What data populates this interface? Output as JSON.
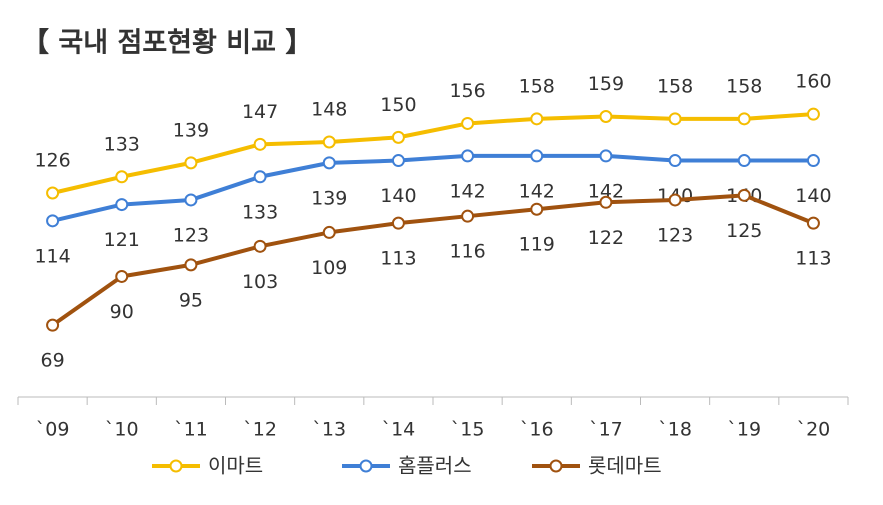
{
  "chart_data": {
    "type": "line",
    "title": "【 국내 점포현황 비교 】",
    "categories": [
      "`09",
      "`10",
      "`11",
      "`12",
      "`13",
      "`14",
      "`15",
      "`16",
      "`17",
      "`18",
      "`19",
      "`20"
    ],
    "series": [
      {
        "name": "이마트",
        "color": "#f5bd00",
        "values": [
          126,
          133,
          139,
          147,
          148,
          150,
          156,
          158,
          159,
          158,
          158,
          160
        ]
      },
      {
        "name": "홈플러스",
        "color": "#3f7fd6",
        "values": [
          114,
          121,
          123,
          133,
          139,
          140,
          142,
          142,
          142,
          140,
          140,
          140
        ]
      },
      {
        "name": "롯데마트",
        "color": "#a0520f",
        "values": [
          69,
          90,
          95,
          103,
          109,
          113,
          116,
          119,
          122,
          123,
          125,
          113
        ]
      }
    ],
    "ylim": [
      38,
      170
    ]
  }
}
